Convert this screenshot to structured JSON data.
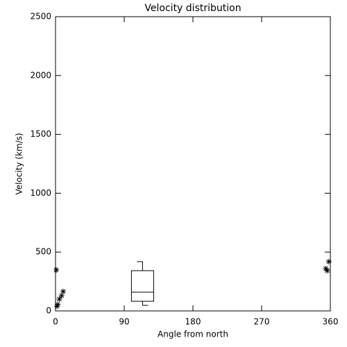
{
  "chart_data": {
    "type": "box",
    "title": "Velocity distribution",
    "xlabel": "Angle from north",
    "ylabel": "Velocity (km/s)",
    "xlim": [
      0,
      360
    ],
    "xticks": [
      0,
      90,
      180,
      270,
      360
    ],
    "ylim": [
      0,
      2500
    ],
    "yticks": [
      0,
      500,
      1000,
      1500,
      2000,
      2500
    ],
    "color": "#000000",
    "boxes": [
      {
        "x": 114,
        "min": 47,
        "q1": 82,
        "median": 159,
        "q3": 342,
        "max": 419
      }
    ],
    "points": {
      "x": [
        1,
        2,
        3,
        5,
        8,
        10,
        354,
        356,
        358
      ],
      "y": [
        348,
        40,
        55,
        100,
        130,
        165,
        360,
        342,
        419
      ]
    }
  }
}
